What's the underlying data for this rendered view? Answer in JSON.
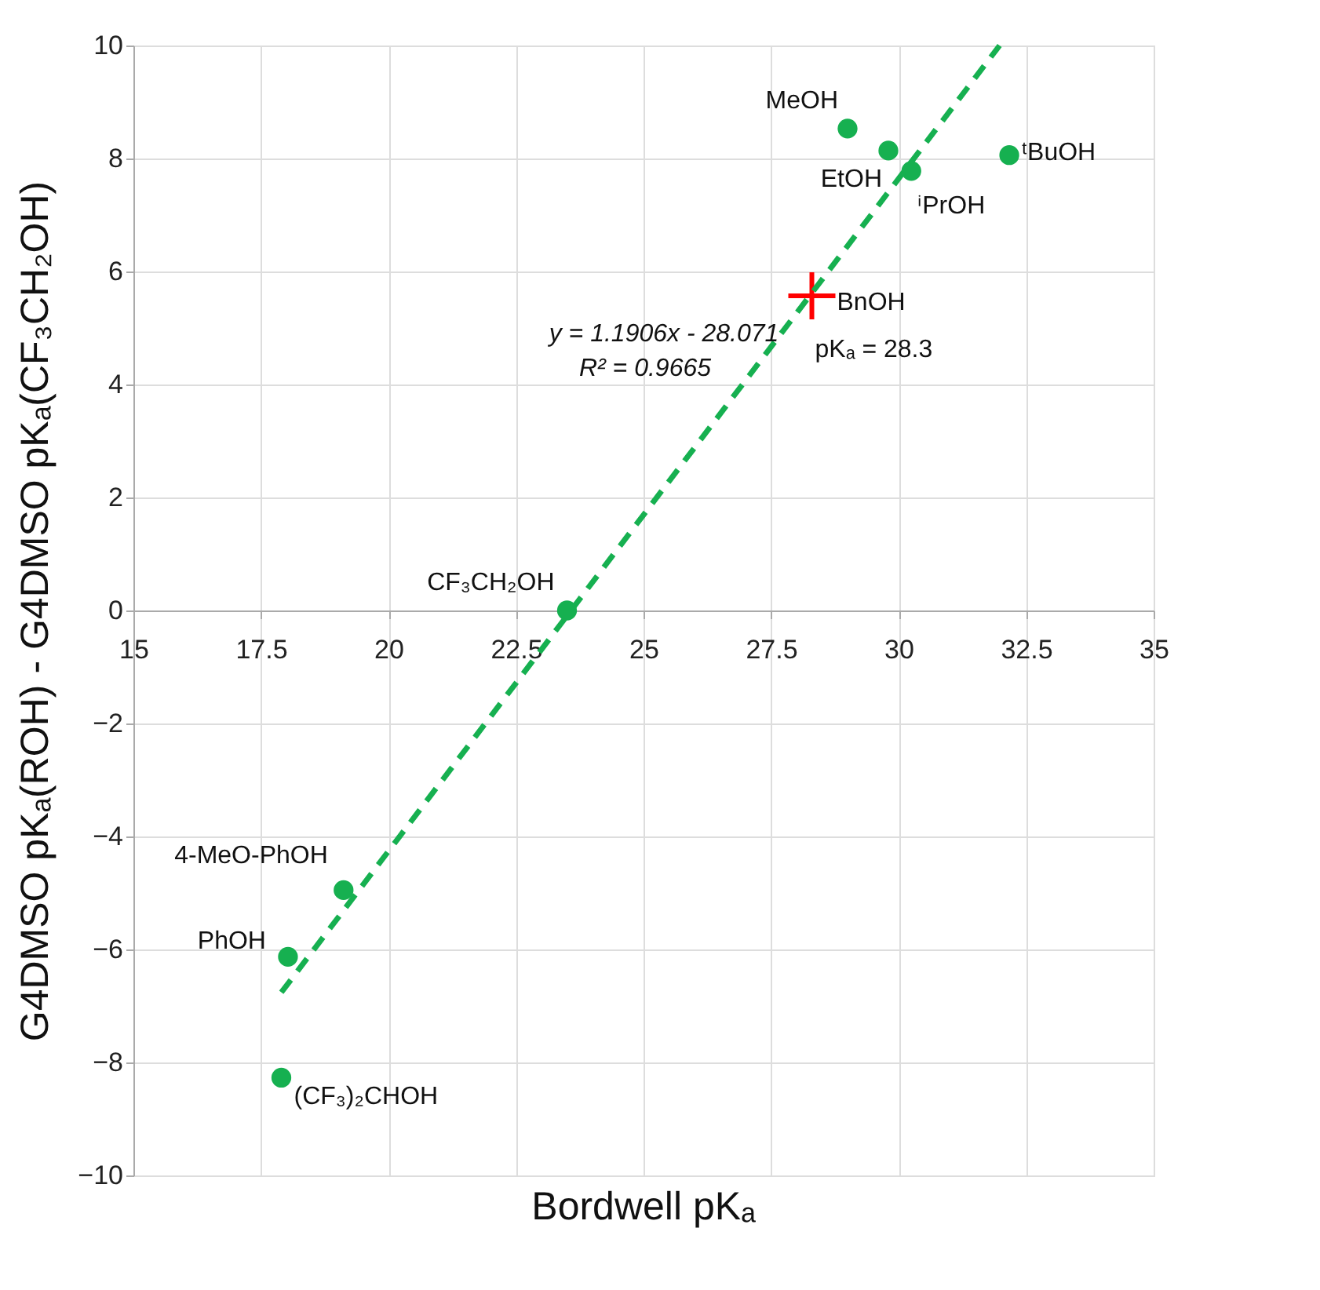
{
  "chart_data": {
    "type": "scatter",
    "xlabel": "Bordwell pKₐ",
    "ylabel": "G4DMSO pKₐ(ROH) - G4DMSO pKₐ(CF₃CH₂OH)",
    "xlim": [
      15,
      35
    ],
    "xticks": [
      15,
      17.5,
      20,
      22.5,
      25,
      27.5,
      30,
      32.5,
      35
    ],
    "ylim": [
      -10,
      10
    ],
    "yticks": [
      -10,
      -8,
      -6,
      -4,
      -2,
      0,
      2,
      4,
      6,
      8,
      10
    ],
    "grid": true,
    "series": [
      {
        "color": "#16b050",
        "marker": "circle",
        "x": [
          29.0,
          29.8,
          30.25,
          32.17,
          23.5,
          19.12,
          18.03,
          17.9
        ],
        "values": [
          8.53,
          8.14,
          7.78,
          8.06,
          0.0,
          -4.95,
          -6.13,
          -8.27
        ]
      },
      {
        "color": "#ff0000",
        "marker": "cross",
        "x": [
          28.3
        ],
        "values": [
          5.57
        ]
      },
      {
        "type": "line",
        "color": "#16b050",
        "line_style": "dashed",
        "x": [
          17.9,
          31.98
        ],
        "values": [
          -6.76,
          10.0
        ]
      }
    ],
    "annotations": [
      {
        "text": "MeOH",
        "x": 29.0,
        "y": 8.53
      },
      {
        "text": "EtOH",
        "x": 29.8,
        "y": 8.14
      },
      {
        "text": "ⁱPrOH",
        "x": 30.25,
        "y": 7.78
      },
      {
        "text": "ᵗBuOH",
        "x": 32.17,
        "y": 8.06
      },
      {
        "text": "CF₃CH₂OH",
        "x": 23.5,
        "y": 0.0
      },
      {
        "text": "4-MeO-PhOH",
        "x": 19.12,
        "y": -4.95
      },
      {
        "text": "PhOH",
        "x": 18.03,
        "y": -6.13
      },
      {
        "text": "(CF₃)₂CHOH",
        "x": 17.9,
        "y": -8.27
      },
      {
        "text": "BnOH",
        "x": 28.3,
        "y": 5.57
      },
      {
        "text": "pKₐ = 28.3",
        "x": 28.3,
        "y": 5.57
      },
      "y = 1.1906x - 28.071",
      "R² = 0.9665"
    ]
  }
}
